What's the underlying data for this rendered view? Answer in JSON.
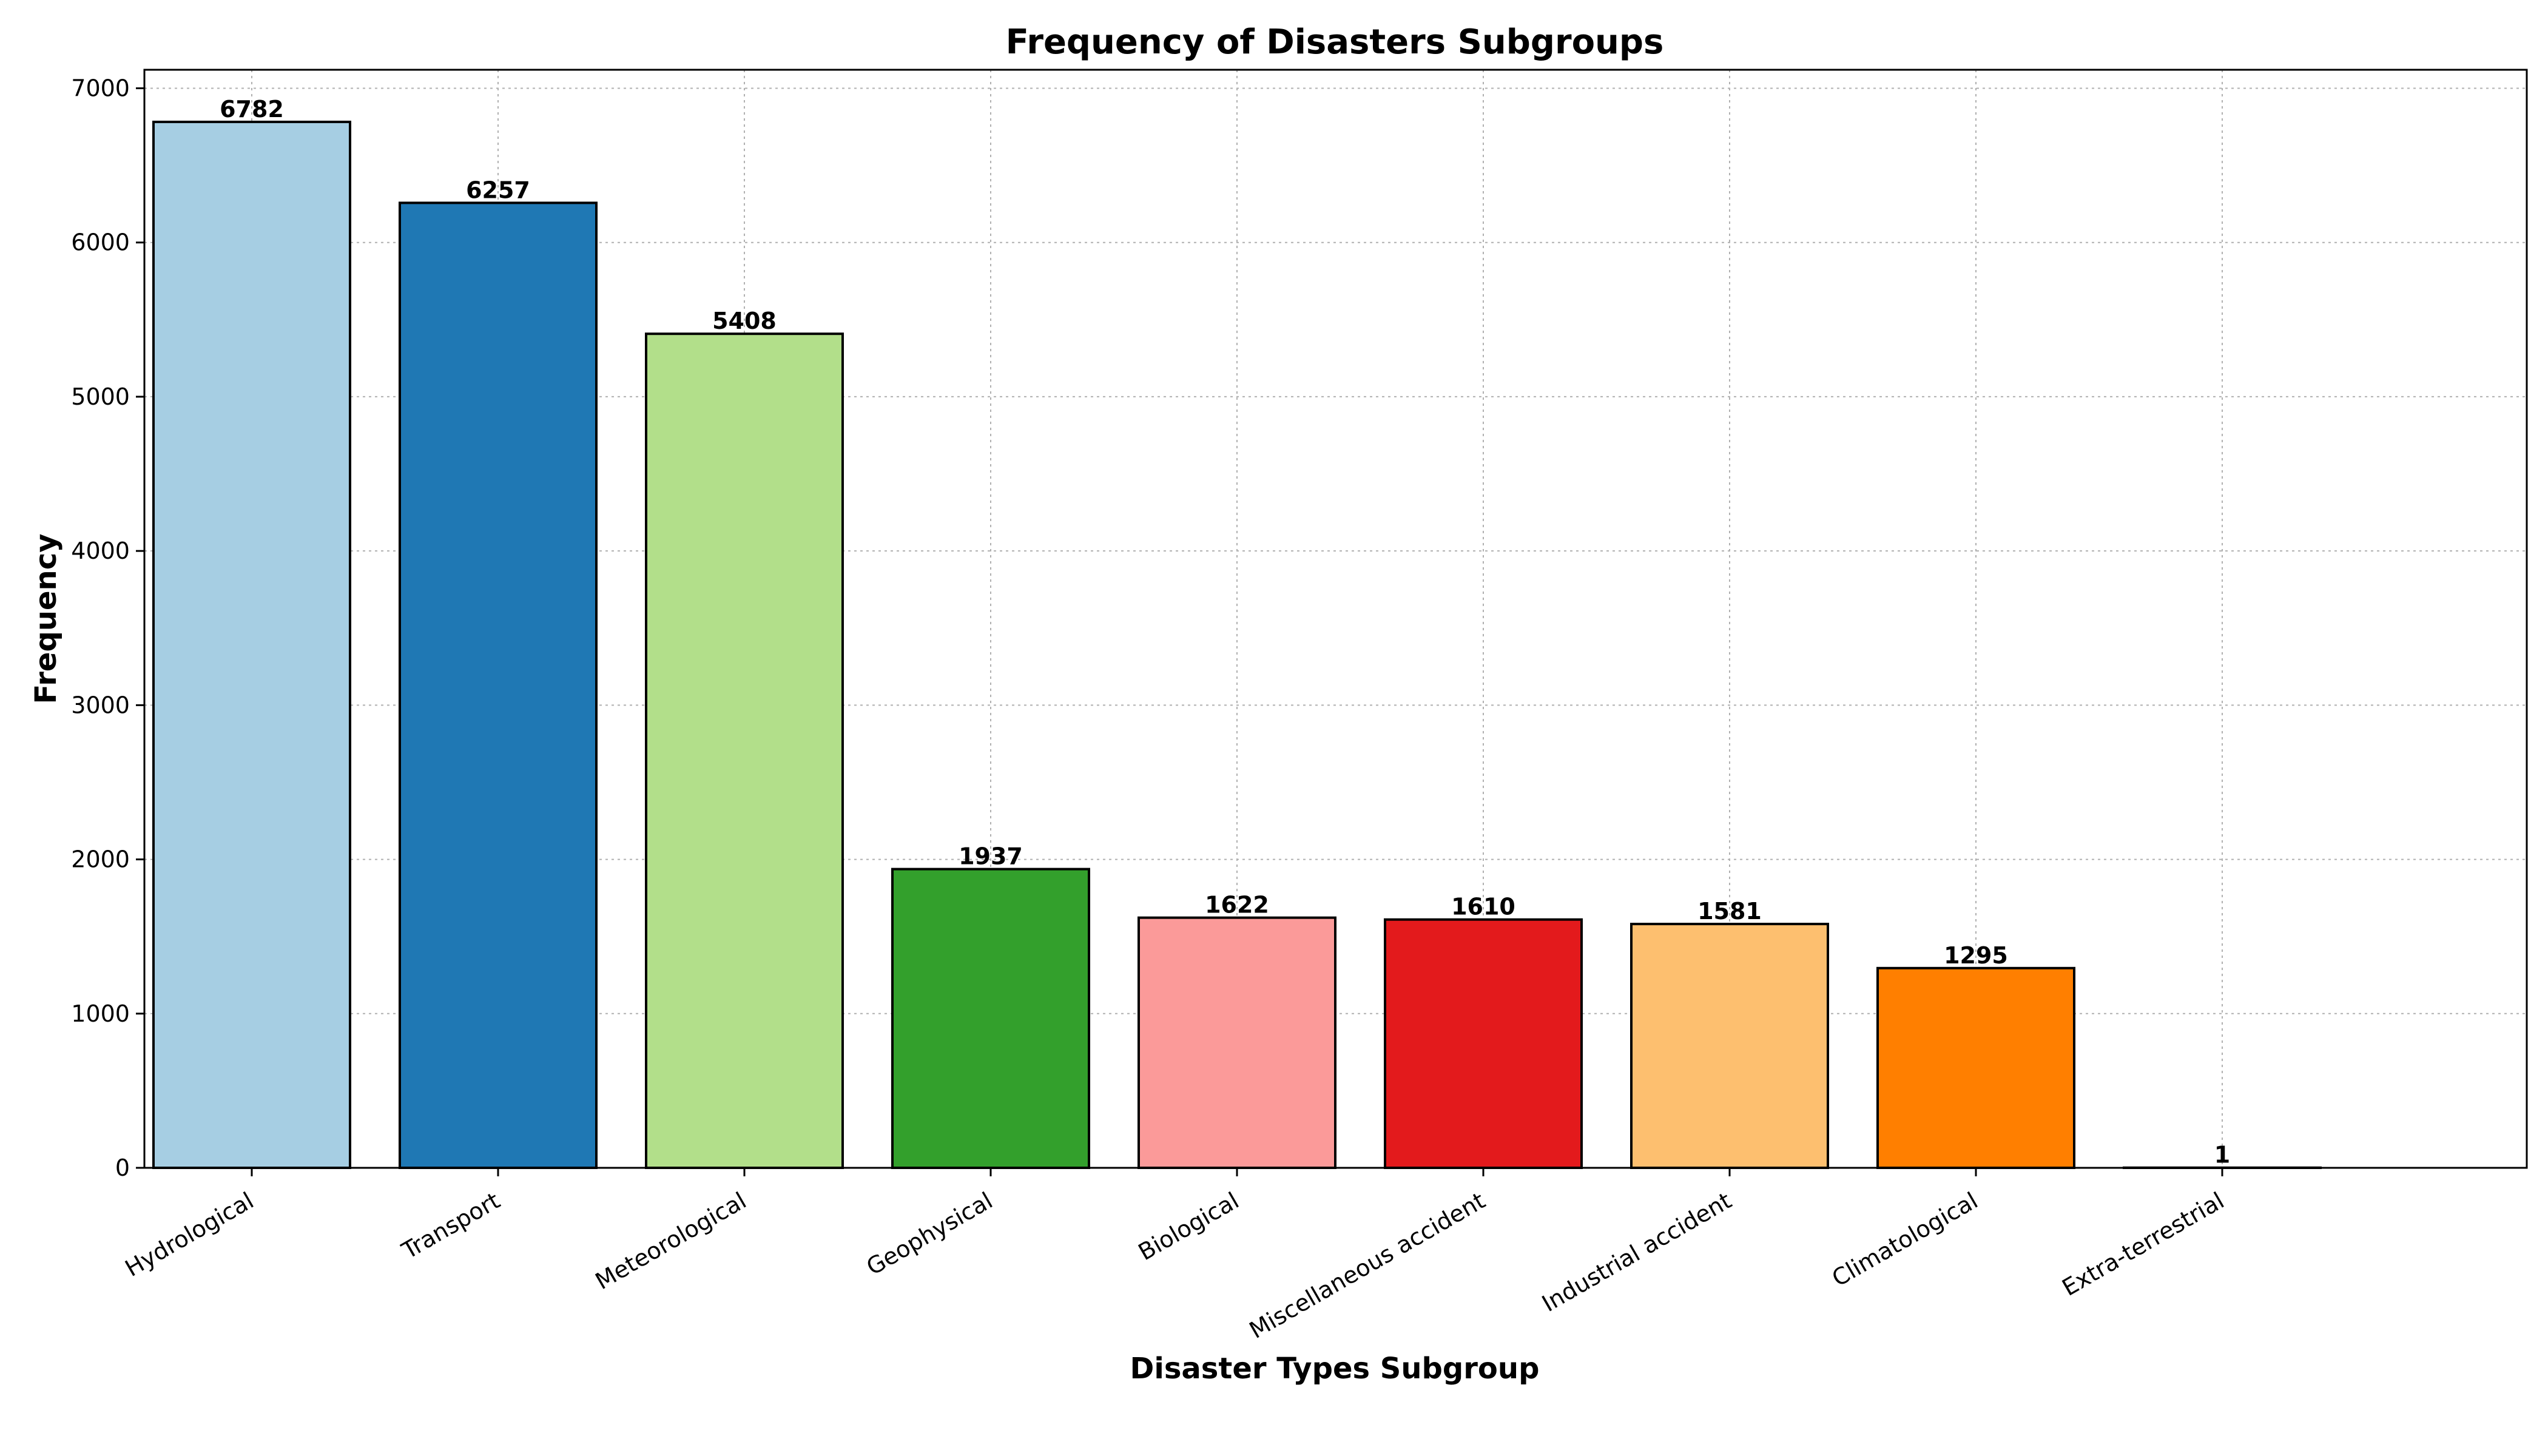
{
  "chart_data": {
    "type": "bar",
    "title": "Frequency of Disasters Subgroups",
    "xlabel": "Disaster Types Subgroup",
    "ylabel": "Frequency",
    "categories": [
      "Hydrological",
      "Transport",
      "Meteorological",
      "Geophysical",
      "Biological",
      "Miscellaneous accident",
      "Industrial accident",
      "Climatological",
      "Extra-terrestrial"
    ],
    "values": [
      6782,
      6257,
      5408,
      1937,
      1622,
      1610,
      1581,
      1295,
      1
    ],
    "colors": [
      "#a6cee3",
      "#1f78b4",
      "#b2df8a",
      "#33a02c",
      "#fb9a99",
      "#e31a1c",
      "#fdbf6f",
      "#ff7f00",
      "#cab2d6"
    ],
    "ylim": [
      0,
      7120
    ],
    "yticks": [
      0,
      1000,
      2000,
      3000,
      4000,
      5000,
      6000,
      7000
    ],
    "grid": true,
    "data_labels": true
  }
}
